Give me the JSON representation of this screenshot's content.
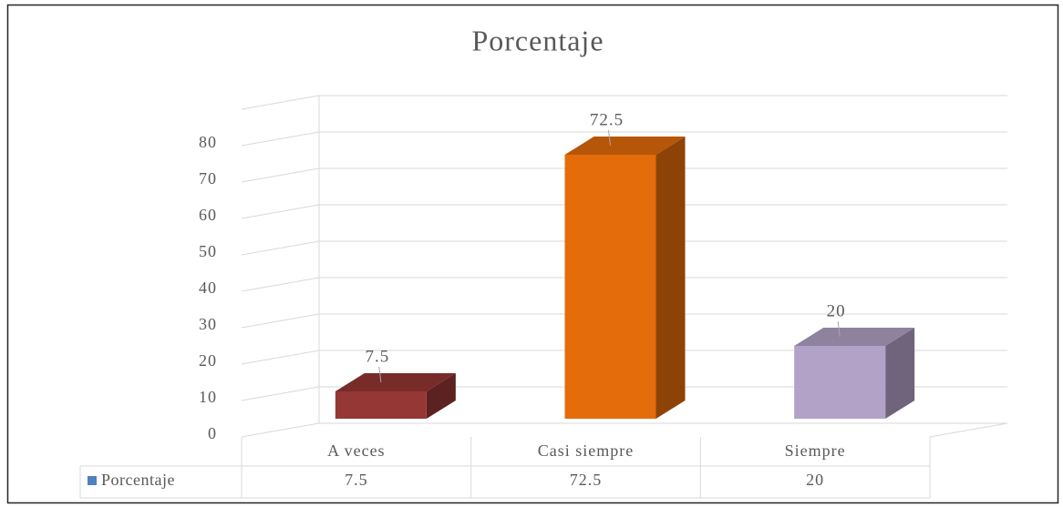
{
  "chart_data": {
    "type": "bar3d",
    "title": "Porcentaje",
    "categories": [
      "A veces",
      "Casi siempre",
      "Siempre"
    ],
    "series": [
      {
        "name": "Porcentaje",
        "color": "#4f81bd",
        "values": [
          7.5,
          72.5,
          20
        ]
      }
    ],
    "bar_colors": [
      "#953735",
      "#e46c0a",
      "#b3a2c7"
    ],
    "ylim": [
      0,
      90
    ],
    "yticks": [
      0,
      10,
      20,
      30,
      40,
      50,
      60,
      70,
      80
    ],
    "grid": true,
    "data_table": true
  }
}
